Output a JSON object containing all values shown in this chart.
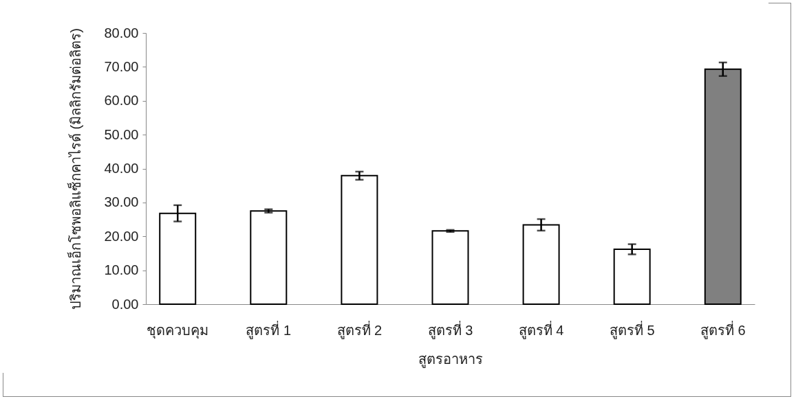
{
  "chart_data": {
    "type": "bar",
    "xlabel": "สูตรอาหาร",
    "ylabel": "ปริมาณเอ็กโซพอลิแซ็กคาไรด์ (มิลลิกรัมต่อลิตร)",
    "categories": [
      "ชุดควบคุม",
      "สูตรที่ 1",
      "สูตรที่ 2",
      "สูตรที่ 3",
      "สูตรที่ 4",
      "สูตรที่ 5",
      "สูตรที่ 6"
    ],
    "values": [
      26.8,
      27.5,
      37.9,
      21.6,
      23.4,
      16.2,
      69.3
    ],
    "errors": [
      2.4,
      0.5,
      1.2,
      0.3,
      1.7,
      1.5,
      2.0
    ],
    "colors": [
      "#ffffff",
      "#ffffff",
      "#ffffff",
      "#ffffff",
      "#ffffff",
      "#ffffff",
      "#808080"
    ],
    "ylim": [
      0,
      80
    ],
    "yticks": [
      {
        "value": 0,
        "label": "0.00"
      },
      {
        "value": 10,
        "label": "10.00"
      },
      {
        "value": 20,
        "label": "20.00"
      },
      {
        "value": 30,
        "label": "30.00"
      },
      {
        "value": 40,
        "label": "40.00"
      },
      {
        "value": 50,
        "label": "50.00"
      },
      {
        "value": 60,
        "label": "60.00"
      },
      {
        "value": 70,
        "label": "70.00"
      },
      {
        "value": 80,
        "label": "80.00"
      }
    ],
    "grid": false
  }
}
